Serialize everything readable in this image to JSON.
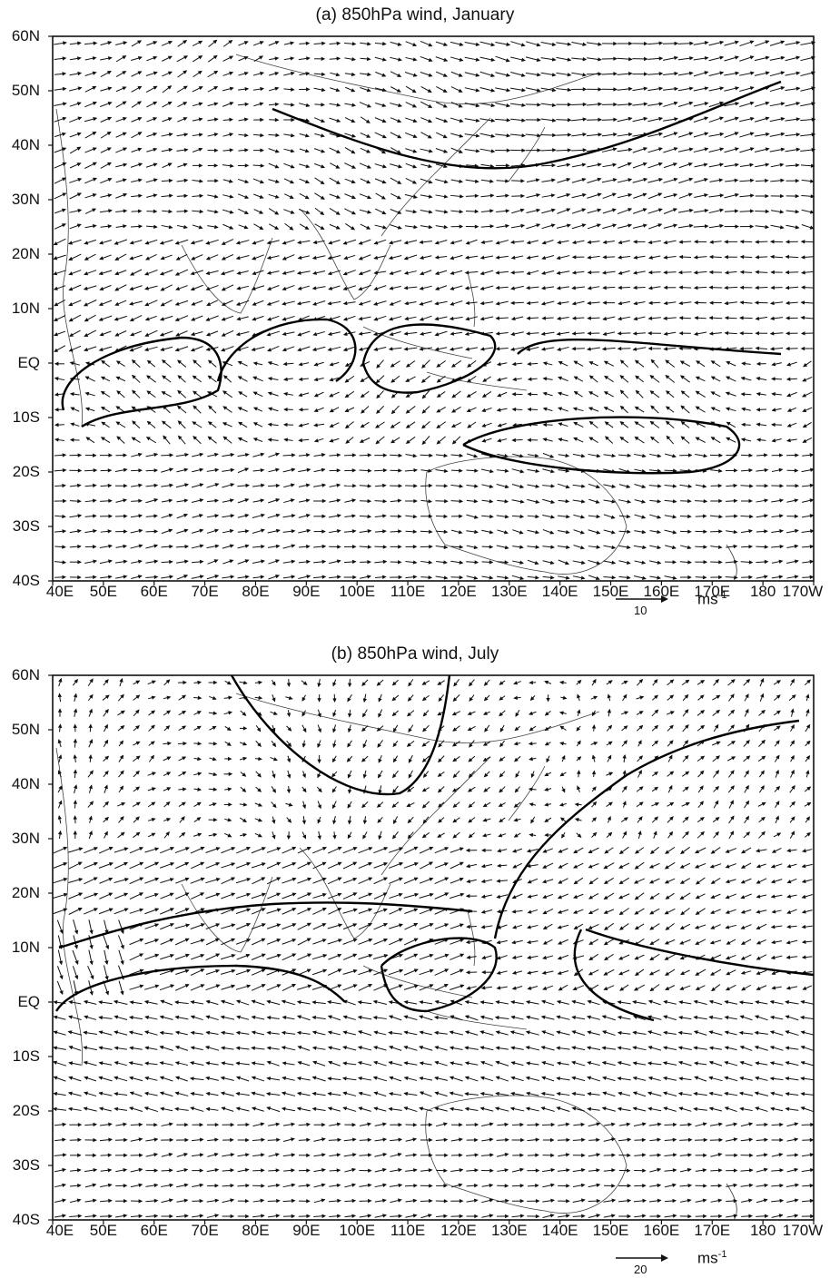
{
  "panels": [
    {
      "id": "a",
      "title": "(a) 850hPa wind, January",
      "y_ticks": [
        "60N",
        "50N",
        "40N",
        "30N",
        "20N",
        "10N",
        "EQ",
        "10S",
        "20S",
        "30S",
        "40S"
      ],
      "x_ticks": [
        "40E",
        "50E",
        "60E",
        "70E",
        "80E",
        "90E",
        "100E",
        "110E",
        "120E",
        "130E",
        "140E",
        "150E",
        "160E",
        "170E",
        "180",
        "170W"
      ],
      "reference_vector": {
        "value": "10",
        "unit": "ms",
        "exponent": "-1"
      }
    },
    {
      "id": "b",
      "title": "(b) 850hPa wind, July",
      "y_ticks": [
        "60N",
        "50N",
        "40N",
        "30N",
        "20N",
        "10N",
        "EQ",
        "10S",
        "20S",
        "30S",
        "40S"
      ],
      "x_ticks": [
        "40E",
        "50E",
        "60E",
        "70E",
        "80E",
        "90E",
        "100E",
        "110E",
        "120E",
        "130E",
        "140E",
        "150E",
        "160E",
        "170E",
        "180",
        "170W"
      ],
      "reference_vector": {
        "value": "20",
        "unit": "ms",
        "exponent": "-1"
      }
    }
  ],
  "colors": {
    "ink": "#111111",
    "background": "#ffffff"
  }
}
